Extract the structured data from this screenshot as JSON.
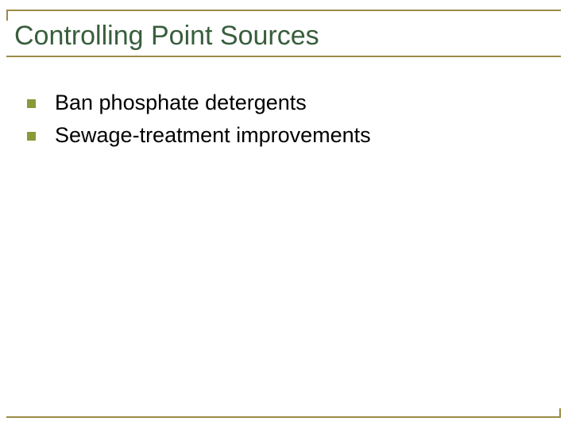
{
  "colors": {
    "rule": "#9a8b47",
    "title": "#385e3c",
    "bullet": "#889a3a",
    "body": "#000000",
    "background": "#ffffff"
  },
  "typography": {
    "title_fontsize": 34,
    "body_fontsize": 27,
    "font_family": "Arial"
  },
  "title": "Controlling Point Sources",
  "bullets": [
    {
      "text": "Ban phosphate detergents"
    },
    {
      "text": "Sewage-treatment improvements"
    }
  ]
}
